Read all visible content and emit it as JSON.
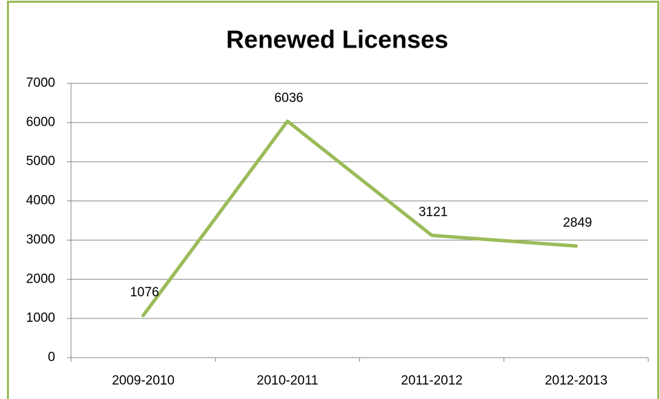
{
  "chart_data": {
    "type": "line",
    "title": "Renewed Licenses",
    "categories": [
      "2009-2010",
      "2010-2011",
      "2011-2012",
      "2012-2013"
    ],
    "values": [
      1076,
      6036,
      3121,
      2849
    ],
    "color": "#9bbb59",
    "ylim": [
      0,
      7000
    ],
    "yticks": [
      0,
      1000,
      2000,
      3000,
      4000,
      5000,
      6000,
      7000
    ],
    "grid": true
  }
}
